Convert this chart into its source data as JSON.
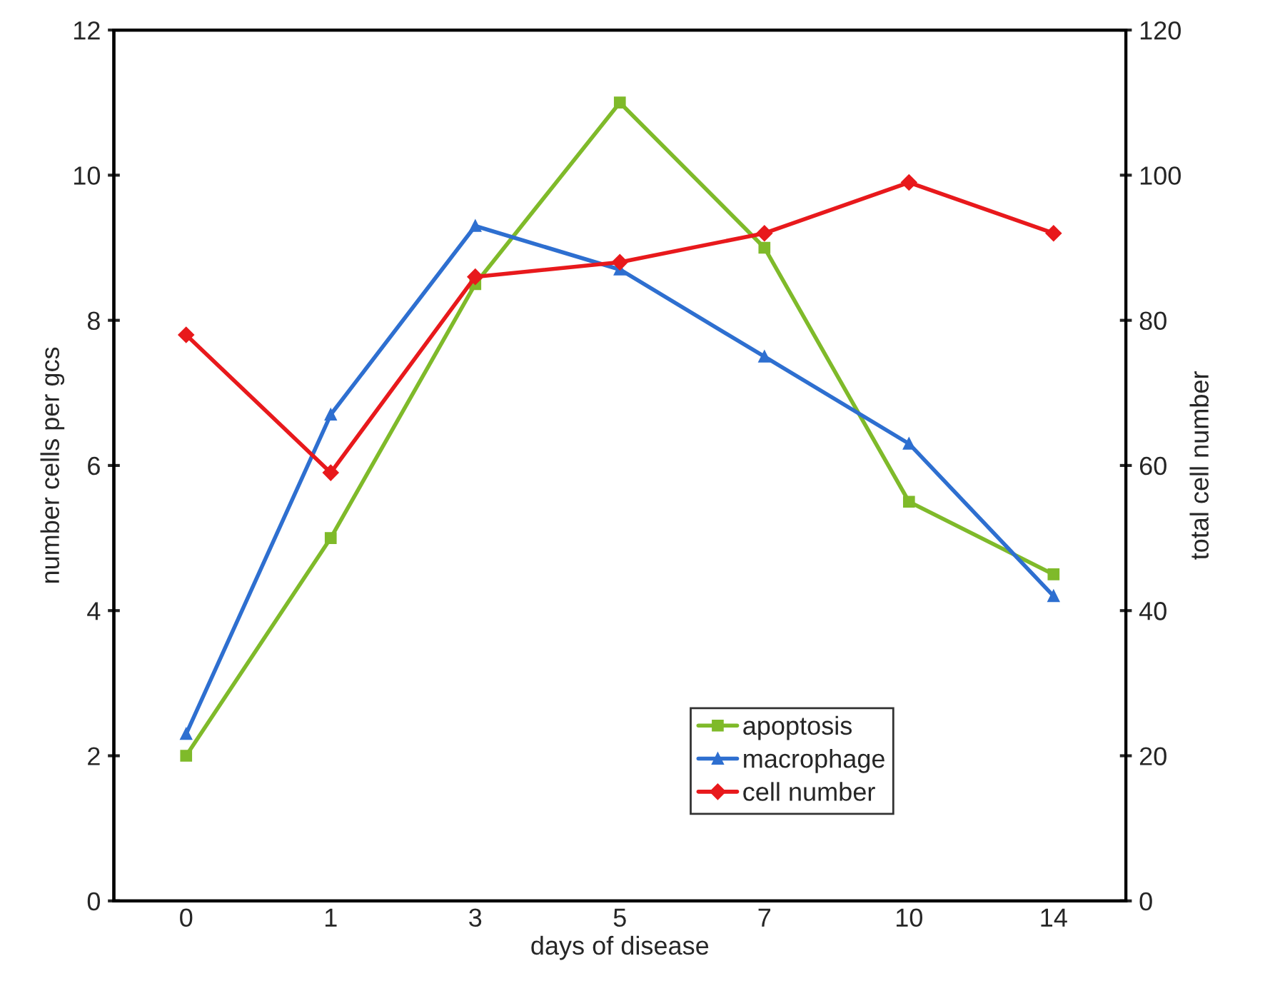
{
  "chart_data": {
    "type": "line",
    "xlabel": "days of disease",
    "ylabel": "number cells per gcs",
    "y2label": "total cell number",
    "categories": [
      "0",
      "1",
      "3",
      "5",
      "7",
      "10",
      "14"
    ],
    "series": [
      {
        "name": "apoptosis",
        "color": "#7fba2a",
        "marker": "square",
        "values": [
          2.0,
          5.0,
          8.5,
          11.0,
          9.0,
          5.5,
          4.5
        ]
      },
      {
        "name": "macrophage",
        "color": "#2e6fd0",
        "marker": "triangle",
        "values": [
          2.3,
          6.7,
          9.3,
          8.7,
          7.5,
          6.3,
          4.2
        ]
      },
      {
        "name": "cell number",
        "color": "#e8191c",
        "marker": "diamond",
        "axis": "y2",
        "values": [
          78,
          59,
          86,
          88,
          92,
          99,
          92
        ]
      }
    ],
    "ylim": [
      0,
      12
    ],
    "yticks": [
      0,
      2,
      4,
      6,
      8,
      10,
      12
    ],
    "y2lim": [
      0,
      120
    ],
    "y2ticks": [
      0,
      20,
      40,
      60,
      80,
      100,
      120
    ],
    "legend": "bottom right",
    "grid": false,
    "line_style": "solid"
  }
}
